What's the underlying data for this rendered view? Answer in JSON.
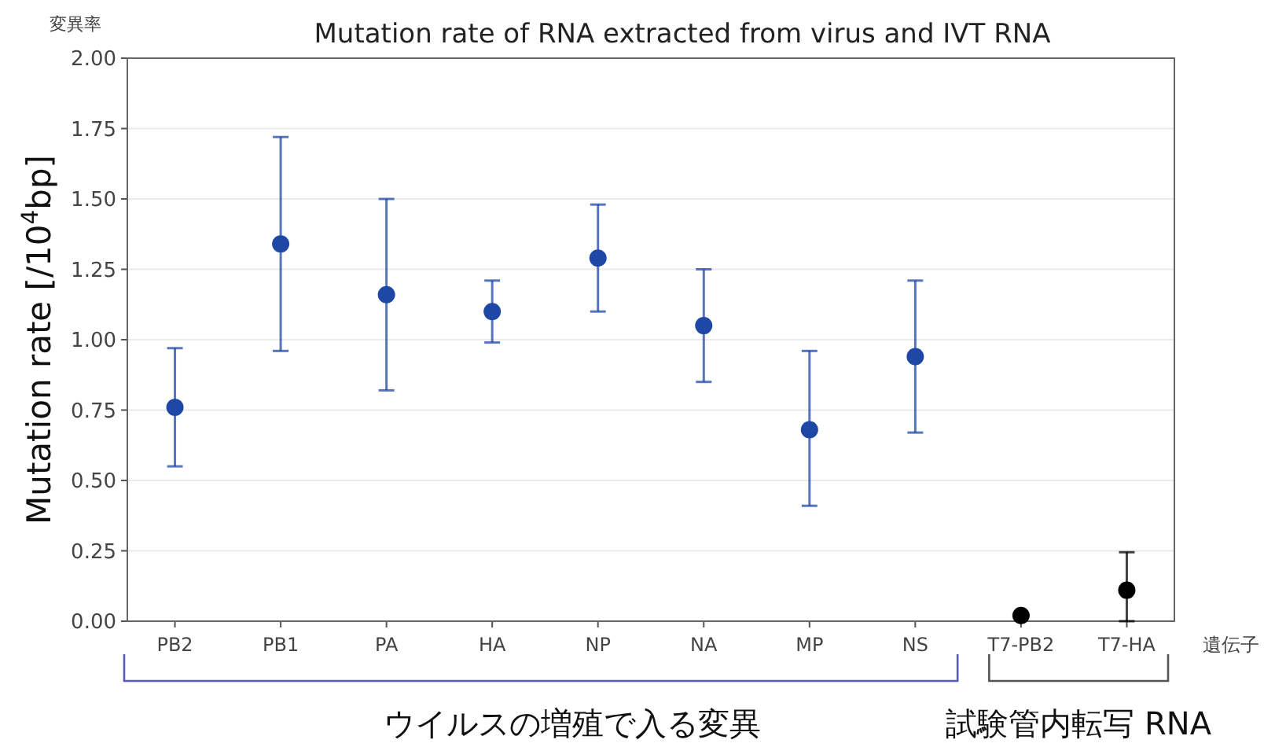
{
  "chart_data": {
    "type": "scatter",
    "title": "Mutation rate of RNA extracted from virus and IVT RNA",
    "ylabel": "Mutation rate [/10$^{4}$bp]",
    "categories": [
      "PB2",
      "PB1",
      "PA",
      "HA",
      "NP",
      "NA",
      "MP",
      "NS",
      "T7-PB2",
      "T7-HA"
    ],
    "series": [
      {
        "color": "#1f47a6",
        "values": [
          0.76,
          1.34,
          1.16,
          1.1,
          1.29,
          1.05,
          0.68,
          0.94,
          null,
          null
        ],
        "errors": [
          [
            0.55,
            0.97
          ],
          [
            0.96,
            1.72
          ],
          [
            0.82,
            1.5
          ],
          [
            0.99,
            1.21
          ],
          [
            1.1,
            1.48
          ],
          [
            0.85,
            1.25
          ],
          [
            0.41,
            0.96
          ],
          [
            0.67,
            1.21
          ],
          null,
          null
        ]
      },
      {
        "color": "#000000",
        "values": [
          null,
          null,
          null,
          null,
          null,
          null,
          null,
          null,
          0.02,
          0.11
        ],
        "errors": [
          null,
          null,
          null,
          null,
          null,
          null,
          null,
          null,
          null,
          [
            0.0,
            0.245
          ]
        ]
      }
    ],
    "ylim": [
      0,
      2.0
    ],
    "yticks": [
      {
        "value": 0,
        "label": "0.00"
      },
      {
        "value": 0.25,
        "label": "0.25"
      },
      {
        "value": 0.5,
        "label": "0.50"
      },
      {
        "value": 0.75,
        "label": "0.75"
      },
      {
        "value": 1.0,
        "label": "1.00"
      },
      {
        "value": 1.25,
        "label": "1.25"
      },
      {
        "value": 1.5,
        "label": "1.50"
      },
      {
        "value": 1.75,
        "label": "1.75"
      },
      {
        "value": 2.0,
        "label": "2.00"
      }
    ],
    "grid": "y",
    "marker": "circle",
    "annotations": [
      "変異率",
      "遺伝子",
      "ウイルスの増殖で入る変異",
      "試験管内転写 RNA"
    ]
  }
}
